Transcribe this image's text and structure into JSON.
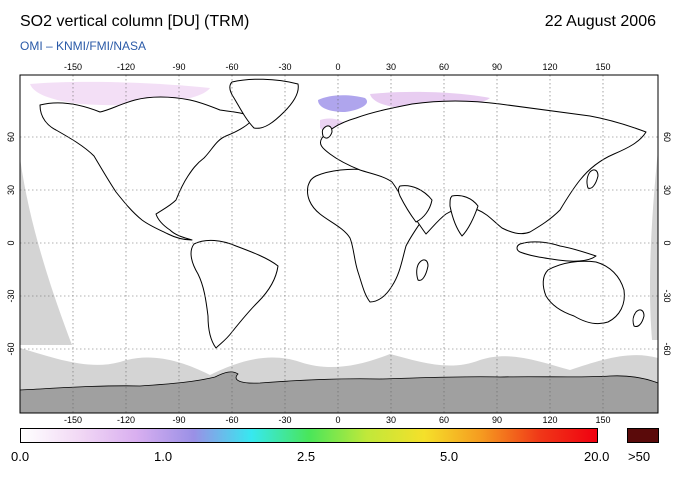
{
  "header": {
    "title": "SO2 vertical column [DU] (TRM)",
    "date": "22 August 2006",
    "subtitle": "OMI  –  KNMI/FMI/NASA"
  },
  "map": {
    "lon_ticks_top": [
      "-150",
      "-120",
      "-90",
      "-60",
      "-30",
      "0",
      "30",
      "60",
      "90",
      "120",
      "150"
    ],
    "lon_ticks_bottom": [
      "-150",
      "-120",
      "-90",
      "-60",
      "-30",
      "0",
      "30",
      "60",
      "90",
      "120",
      "150"
    ],
    "lat_ticks": [
      "60",
      "30",
      "0",
      "-30",
      "-60"
    ],
    "colors": {
      "no_data": "#d4d4d4",
      "antarctica": "#a0a0a0",
      "coastline": "#000000",
      "grid": "#555555",
      "low_so2": "#e6c8f0",
      "mid_so2": "#9b8ee8"
    }
  },
  "colorbar": {
    "labels": {
      "v0": "0.0",
      "v1": "1.0",
      "v2": "2.5",
      "v3": "5.0",
      "v4": "20.0",
      "over": ">50"
    },
    "stops": [
      "#ffffff",
      "#f2d9f5",
      "#d9aff0",
      "#9a90e6",
      "#37e8f0",
      "#49e65a",
      "#c0e83a",
      "#f5e02a",
      "#f59a20",
      "#f03818",
      "#f00010"
    ],
    "overflow_color": "#5a0a0a"
  }
}
